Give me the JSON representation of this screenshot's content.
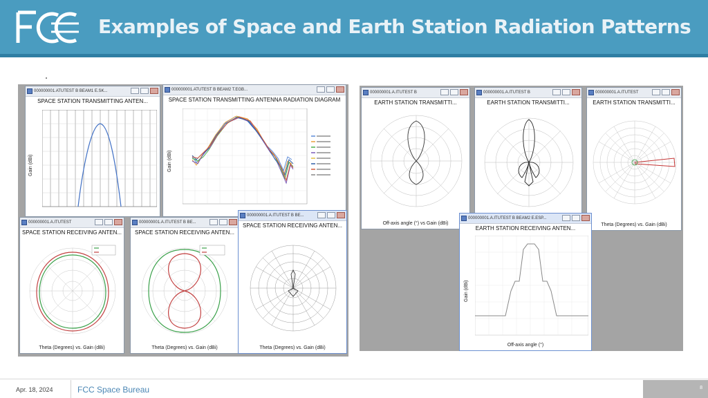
{
  "header": {
    "title": "Examples of Space and Earth Station Radiation Patterns",
    "logo": "FCC"
  },
  "left_group": {
    "win1": {
      "titlebar": "000000001.ATUTEST   B  BEAM1  E.SK...",
      "chart_title": "SPACE STATION TRANSMITTING ANTEN...",
      "ylabel": "Gain (dBi)"
    },
    "win2": {
      "titlebar": "000000001.ATUTEST   B  BEAM2  T.EGB...",
      "chart_title": "SPACE STATION TRANSMITTING ANTENNA RADIATION DIAGRAM",
      "ylabel": "Gain (dBi)"
    },
    "win3": {
      "titlebar": "000000001.A.ITUTEST",
      "chart_title": "SPACE STATION RECEIVING ANTEN...",
      "xlabel": "Theta (Degrees) vs. Gain (dBi)"
    },
    "win4": {
      "titlebar": "000000001.A.ITUTEST   B  BE...",
      "chart_title": "SPACE STATION RECEIVING ANTEN...",
      "xlabel": "Theta (Degrees) vs. Gain (dBi)"
    },
    "win5": {
      "titlebar": "000000001.A.ITUTEST   B  BE...",
      "chart_title": "SPACE STATION RECEIVING ANTEN...",
      "xlabel": "Theta (Degrees) vs. Gain (dBi)"
    }
  },
  "right_group": {
    "win6": {
      "titlebar": "000000001.A.ITUTEST   B",
      "chart_title": "EARTH STATION TRANSMITTI...",
      "xlabel": "Off-axis angle (°) vs Gain (dBi)"
    },
    "win7": {
      "titlebar": "000000001.A.ITUTEST   B",
      "chart_title": "EARTH STATION TRANSMITTI..."
    },
    "win8": {
      "titlebar": "000000001.A.ITUTEST",
      "chart_title": "EARTH STATION TRANSMITTI...",
      "xlabel": "Theta (Degrees) vs. Gain (dBi)"
    },
    "win9": {
      "titlebar": "000000001.A.ITUTEST   B  BEAM2  E.ESP...",
      "chart_title": "EARTH STATION RECEIVING ANTEN...",
      "ylabel": "Gain (dBi)",
      "xlabel": "Off-axis angle (°)"
    }
  },
  "footer": {
    "date": "Apr. 18, 2024",
    "org": "FCC Space Bureau",
    "page": "8"
  },
  "colors": {
    "header": "#4a9cc0",
    "accent_blue": "#4a86b4"
  }
}
